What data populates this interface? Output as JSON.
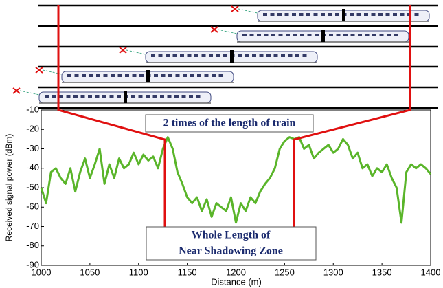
{
  "chart_data": {
    "type": "line",
    "x_label": "Distance (m)",
    "y_label": "Received signal power (dBm)",
    "annotations": [
      "2 times of the length of train",
      "Whole Length of",
      "Near Shadowing Zone"
    ],
    "xlim": [
      1000,
      1400
    ],
    "ylim": [
      -90,
      -10
    ],
    "xticks": [
      1000,
      1050,
      1100,
      1150,
      1200,
      1250,
      1300,
      1350,
      1400
    ],
    "yticks": [
      -10,
      -20,
      -30,
      -40,
      -50,
      -60,
      -70,
      -80,
      -90
    ],
    "series": [
      {
        "color": "#5ab52a",
        "x": [
          1000,
          1005,
          1010,
          1015,
          1020,
          1025,
          1030,
          1035,
          1040,
          1045,
          1050,
          1055,
          1060,
          1065,
          1070,
          1075,
          1080,
          1085,
          1090,
          1095,
          1100,
          1105,
          1110,
          1115,
          1120,
          1125,
          1130,
          1135,
          1140,
          1145,
          1150,
          1155,
          1160,
          1165,
          1170,
          1175,
          1180,
          1185,
          1190,
          1195,
          1200,
          1205,
          1210,
          1215,
          1220,
          1225,
          1230,
          1235,
          1240,
          1245,
          1250,
          1255,
          1260,
          1265,
          1270,
          1275,
          1280,
          1285,
          1290,
          1295,
          1300,
          1305,
          1310,
          1315,
          1320,
          1325,
          1330,
          1335,
          1340,
          1345,
          1350,
          1355,
          1360,
          1365,
          1370,
          1375,
          1380,
          1385,
          1390,
          1395,
          1400
        ],
        "values": [
          -50,
          -58,
          -42,
          -40,
          -45,
          -48,
          -40,
          -52,
          -42,
          -35,
          -45,
          -38,
          -30,
          -48,
          -38,
          -45,
          -35,
          -40,
          -38,
          -32,
          -38,
          -33,
          -36,
          -34,
          -40,
          -30,
          -24,
          -30,
          -42,
          -48,
          -55,
          -58,
          -55,
          -62,
          -56,
          -65,
          -58,
          -60,
          -62,
          -55,
          -68,
          -58,
          -62,
          -55,
          -58,
          -52,
          -48,
          -45,
          -40,
          -30,
          -26,
          -24,
          -25,
          -24,
          -30,
          -28,
          -35,
          -32,
          -30,
          -28,
          -32,
          -30,
          -25,
          -28,
          -35,
          -32,
          -40,
          -38,
          -44,
          -40,
          -42,
          -38,
          -45,
          -50,
          -68,
          -42,
          -38,
          -40,
          -38,
          -40,
          -43
        ]
      }
    ]
  }
}
